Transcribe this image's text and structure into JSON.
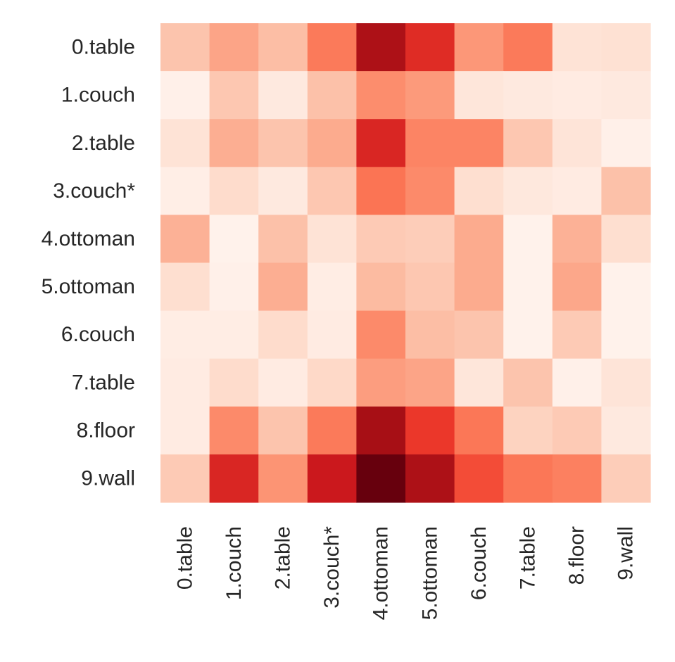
{
  "chart_data": {
    "type": "heatmap",
    "title": "",
    "xlabel": "",
    "ylabel": "",
    "row_labels": [
      "0.table",
      "1.couch",
      "2.table",
      "3.couch*",
      "4.ottoman",
      "5.ottoman",
      "6.couch",
      "7.table",
      "8.floor",
      "9.wall"
    ],
    "col_labels": [
      "0.table",
      "1.couch",
      "2.table",
      "3.couch*",
      "4.ottoman",
      "5.ottoman",
      "6.couch",
      "7.table",
      "8.floor",
      "9.wall"
    ],
    "colormap": "Reds",
    "colorbar": false,
    "value_range": [
      0,
      1
    ],
    "values": [
      [
        0.22,
        0.32,
        0.24,
        0.45,
        0.85,
        0.68,
        0.36,
        0.45,
        0.11,
        0.12
      ],
      [
        0.03,
        0.21,
        0.07,
        0.23,
        0.39,
        0.35,
        0.09,
        0.07,
        0.06,
        0.07
      ],
      [
        0.11,
        0.29,
        0.22,
        0.3,
        0.7,
        0.42,
        0.42,
        0.21,
        0.1,
        0.03
      ],
      [
        0.04,
        0.14,
        0.07,
        0.21,
        0.47,
        0.4,
        0.13,
        0.08,
        0.06,
        0.23
      ],
      [
        0.28,
        0.02,
        0.23,
        0.11,
        0.2,
        0.19,
        0.3,
        0.02,
        0.28,
        0.13
      ],
      [
        0.13,
        0.03,
        0.29,
        0.05,
        0.25,
        0.21,
        0.3,
        0.02,
        0.31,
        0.02
      ],
      [
        0.05,
        0.05,
        0.14,
        0.06,
        0.4,
        0.24,
        0.22,
        0.02,
        0.2,
        0.02
      ],
      [
        0.06,
        0.14,
        0.06,
        0.15,
        0.34,
        0.32,
        0.09,
        0.22,
        0.03,
        0.1
      ],
      [
        0.06,
        0.4,
        0.22,
        0.45,
        0.87,
        0.64,
        0.46,
        0.17,
        0.2,
        0.07
      ],
      [
        0.2,
        0.7,
        0.37,
        0.75,
        1.0,
        0.85,
        0.58,
        0.46,
        0.43,
        0.19
      ]
    ]
  }
}
